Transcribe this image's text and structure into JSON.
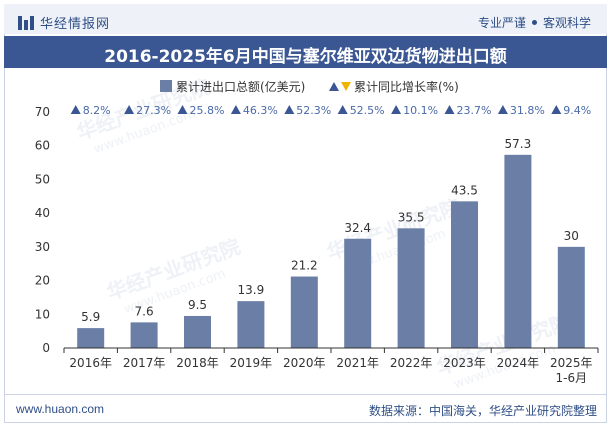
{
  "header": {
    "brand": "华经情报网",
    "slogan_left": "专业严谨",
    "slogan_right": "客观科学"
  },
  "title": "2016-2025年6月中国与塞尔维亚双边货物进出口额",
  "footer": {
    "website": "www.huaon.com",
    "source": "数据来源：中国海关，华经产业研究院整理"
  },
  "watermark": {
    "line1": "华经产业研究院",
    "line2": "www.huaon.com"
  },
  "colors": {
    "bar": "#6a7ea6",
    "growth_label": "#4a6aa8",
    "growth_up": "#3a5693",
    "legend_down": "#f0b400",
    "header_bg": "#3a5693",
    "axis": "#333333"
  },
  "chart_data": {
    "type": "bar",
    "categories": [
      "2016年",
      "2017年",
      "2018年",
      "2019年",
      "2020年",
      "2021年",
      "2022年",
      "2023年",
      "2024年",
      "2025年1-6月"
    ],
    "category_lines": [
      [
        "2016年"
      ],
      [
        "2017年"
      ],
      [
        "2018年"
      ],
      [
        "2019年"
      ],
      [
        "2020年"
      ],
      [
        "2021年"
      ],
      [
        "2022年"
      ],
      [
        "2023年"
      ],
      [
        "2024年"
      ],
      [
        "2025年",
        "1-6月"
      ]
    ],
    "series": [
      {
        "name": "累计进出口总额(亿美元)",
        "values": [
          5.9,
          7.6,
          9.5,
          13.9,
          21.2,
          32.4,
          35.5,
          43.5,
          57.3,
          30
        ]
      },
      {
        "name": "累计同比增长率(%)",
        "values": [
          8.2,
          27.3,
          25.8,
          46.3,
          52.3,
          52.5,
          10.1,
          23.7,
          31.8,
          9.4
        ]
      }
    ],
    "value_labels": [
      "5.9",
      "7.6",
      "9.5",
      "13.9",
      "21.2",
      "32.4",
      "35.5",
      "43.5",
      "57.3",
      "30"
    ],
    "growth_labels": [
      "8.2%",
      "27.3%",
      "25.8%",
      "46.3%",
      "52.3%",
      "52.5%",
      "10.1%",
      "23.7%",
      "31.8%",
      "9.4%"
    ],
    "yticks": [
      0,
      10,
      20,
      30,
      40,
      50,
      60,
      70
    ],
    "ylim": [
      0,
      70
    ],
    "legend_position": "top-center",
    "grid": false
  }
}
